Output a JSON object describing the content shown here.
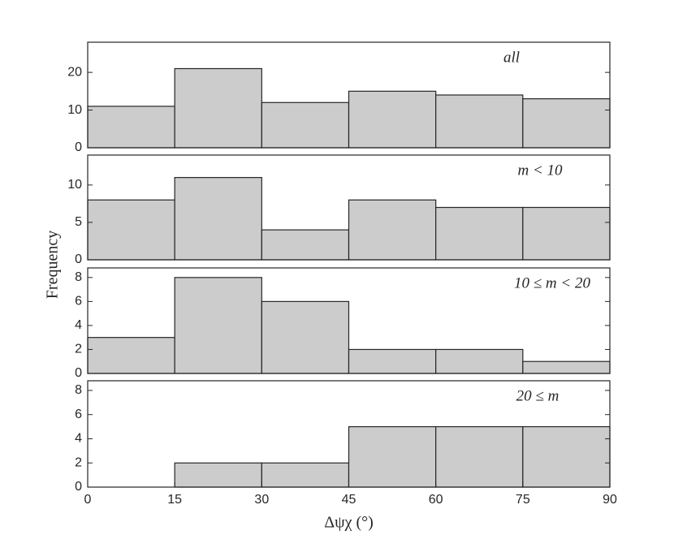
{
  "chart_data": [
    {
      "type": "histogram",
      "label": "all",
      "bins": [
        0,
        15,
        30,
        45,
        60,
        75,
        90
      ],
      "values": [
        11,
        21,
        12,
        15,
        14,
        13
      ],
      "color": "#cccccc",
      "xlim": [
        0,
        90
      ],
      "ylim": [
        0,
        28
      ],
      "yticks": [
        0,
        10,
        20
      ],
      "ylabel": "Frequency"
    },
    {
      "type": "histogram",
      "label": "m < 10",
      "bins": [
        0,
        15,
        30,
        45,
        60,
        75,
        90
      ],
      "values": [
        8,
        11,
        4,
        8,
        7,
        7
      ],
      "color": "#cccccc",
      "xlim": [
        0,
        90
      ],
      "ylim": [
        0,
        14
      ],
      "yticks": [
        0,
        5,
        10
      ]
    },
    {
      "type": "histogram",
      "label": "10 ≤ m < 20",
      "bins": [
        0,
        15,
        30,
        45,
        60,
        75,
        90
      ],
      "values": [
        3,
        8,
        6,
        2,
        2,
        1
      ],
      "color": "#cccccc",
      "xlim": [
        0,
        90
      ],
      "ylim": [
        0,
        8.8
      ],
      "yticks": [
        0,
        2,
        4,
        6,
        8
      ]
    },
    {
      "type": "histogram",
      "label": "20 ≤ m",
      "bins": [
        0,
        15,
        30,
        45,
        60,
        75,
        90
      ],
      "values": [
        0,
        2,
        2,
        5,
        5,
        5
      ],
      "color": "#cccccc",
      "xlim": [
        0,
        90
      ],
      "ylim": [
        0,
        8.8
      ],
      "yticks": [
        0,
        2,
        4,
        6,
        8
      ],
      "xticks": [
        0,
        15,
        30,
        45,
        60,
        75,
        90
      ],
      "xlabel": "Δψχ (°)"
    }
  ]
}
